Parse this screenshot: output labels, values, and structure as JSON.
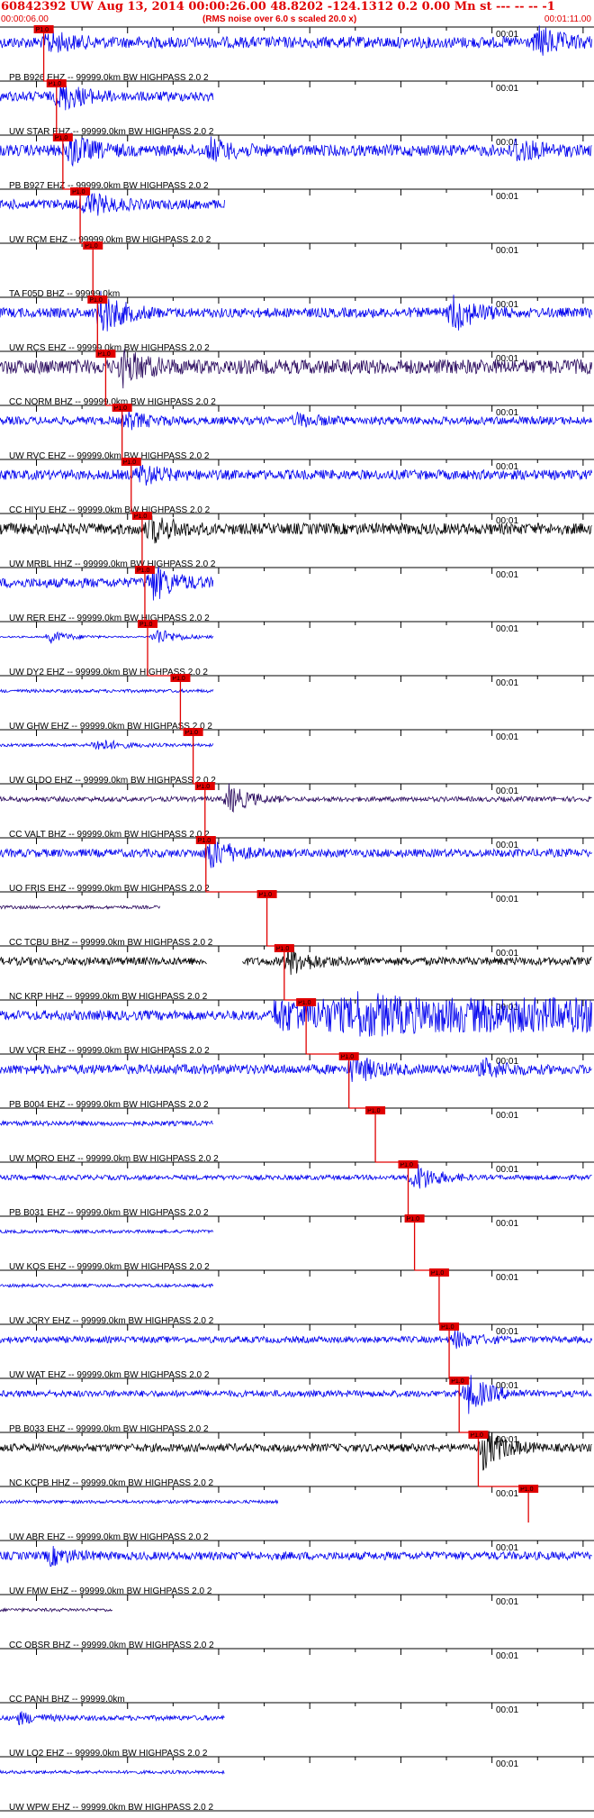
{
  "header": {
    "title_line": "60842392 UW Aug 13, 2014 00:00:26.00   48.8202 -124.1312  0.2 0.00 Mn st --- -- --  -1",
    "start_time": "00:00:06.00",
    "note": "(RMS noise over 6.0 s scaled 20.0 x)",
    "end_time": "00:01:11.00"
  },
  "colors": {
    "header": "#e00000",
    "pick": "#e00000",
    "blue": "#0000ee",
    "purple": "#2a0a5e",
    "black": "#000000",
    "axis": "#000000"
  },
  "chart_data": {
    "type": "seismogram-record-section",
    "time_window": {
      "start": "00:00:06.00",
      "end": "00:01:11.00"
    },
    "tick_label": "00:01",
    "pick_label": "P1.0",
    "traces": [
      {
        "label": "PB B926 EHZ -- 99999.0km BW  HIGHPASS  2.0  2",
        "color": "#0000ee",
        "pick": 10.8,
        "amp": 0.35,
        "rec_end": 1.0,
        "burst_at": 11.2,
        "burst": 0.6,
        "bursts": [
          [
            65.0,
            0.9
          ]
        ]
      },
      {
        "label": "UW STAR EHZ -- 99999.0km BW  HIGHPASS  2.0  2",
        "color": "#0000ee",
        "pick": 12.2,
        "amp": 0.3,
        "rec_end": 0.36,
        "burst_at": 12.5,
        "burst": 0.9
      },
      {
        "label": "PB B927 EHZ -- 99999.0km BW  HIGHPASS  2.0  2",
        "color": "#0000ee",
        "pick": 12.9,
        "amp": 0.35,
        "rec_end": 1.0,
        "burst_at": 13.4,
        "burst": 1.0,
        "bursts": [
          [
            29.0,
            0.6
          ],
          [
            62.5,
            0.7
          ]
        ]
      },
      {
        "label": "UW RCM EHZ -- 99999.0km BW  HIGHPASS  2.0  2",
        "color": "#0000ee",
        "pick": 14.8,
        "amp": 0.3,
        "rec_end": 0.38,
        "burst_at": 15.2,
        "burst": 0.8
      },
      {
        "label": "TA F05D BHZ -- 99999.0km",
        "color": "#0000ee",
        "pick": 16.2,
        "amp": 0.0,
        "rec_end": 0.0,
        "burst_at": 0,
        "burst": 0
      },
      {
        "label": "UW RCS EHZ -- 99999.0km BW  HIGHPASS  2.0  2",
        "color": "#0000ee",
        "pick": 16.7,
        "amp": 0.3,
        "rec_end": 1.0,
        "burst_at": 17.0,
        "burst": 1.3,
        "bursts": [
          [
            55.5,
            1.2
          ]
        ]
      },
      {
        "label": "CC NORM BHZ -- 99999.0km BW  HIGHPASS  2.0  2",
        "color": "#2a0a5e",
        "pick": 17.6,
        "amp": 0.45,
        "rec_end": 1.0,
        "burst_at": 19.5,
        "burst": 0.9
      },
      {
        "label": "UW RVC EHZ -- 99999.0km BW  HIGHPASS  2.0  2",
        "color": "#0000ee",
        "pick": 19.4,
        "amp": 0.25,
        "rec_end": 1.0,
        "burst_at": 19.8,
        "burst": 0.5,
        "bursts": [
          [
            38.5,
            0.35
          ]
        ]
      },
      {
        "label": "CC HIYU EHZ -- 99999.0km BW  HIGHPASS  2.0  2",
        "color": "#0000ee",
        "pick": 20.4,
        "amp": 0.3,
        "rec_end": 1.0,
        "burst_at": 21.3,
        "burst": 0.6
      },
      {
        "label": "UW MRBL HHZ -- 99999.0km BW  HIGHPASS  2.0  2",
        "color": "#000000",
        "pick": 21.6,
        "amp": 0.35,
        "rec_end": 1.0,
        "burst_at": 22.4,
        "burst": 0.8
      },
      {
        "label": "UW RER EHZ -- 99999.0km BW  HIGHPASS  2.0  2",
        "color": "#0000ee",
        "pick": 21.9,
        "amp": 0.3,
        "rec_end": 0.36,
        "burst_at": 22.6,
        "burst": 1.1
      },
      {
        "label": "UW DY2 EHZ -- 99999.0km BW  HIGHPASS  2.0  2",
        "color": "#0000ee",
        "pick": 22.2,
        "amp": 0.05,
        "rec_end": 0.36,
        "burst_at": 23.0,
        "burst": 0.6,
        "bursts": [
          [
            11.4,
            0.4
          ]
        ]
      },
      {
        "label": "UW GHW EHZ -- 99999.0km BW  HIGHPASS  2.0  2",
        "color": "#0000ee",
        "pick": 25.8,
        "amp": 0.1,
        "rec_end": 0.36,
        "burst_at": 0,
        "burst": 0
      },
      {
        "label": "UW GLDO EHZ -- 99999.0km BW  HIGHPASS  2.0  2",
        "color": "#0000ee",
        "pick": 27.2,
        "amp": 0.1,
        "rec_end": 0.36,
        "burst_at": 16.5,
        "burst": 0.4
      },
      {
        "label": "CC VALT BHZ -- 99999.0km BW  HIGHPASS  2.0  2",
        "color": "#2a0a5e",
        "pick": 28.5,
        "amp": 0.15,
        "rec_end": 1.0,
        "burst_at": 31.0,
        "burst": 0.9
      },
      {
        "label": "UO FRIS EHZ -- 99999.0km BW  HIGHPASS  2.0  2",
        "color": "#0000ee",
        "pick": 28.6,
        "amp": 0.25,
        "rec_end": 1.0,
        "burst_at": 28.8,
        "burst": 1.1
      },
      {
        "label": "CC TCBU BHZ -- 99999.0km BW  HIGHPASS  2.0  2",
        "color": "#2a0a5e",
        "pick": 35.3,
        "amp": 0.1,
        "rec_end": 0.27,
        "burst_at": 0,
        "burst": 0
      },
      {
        "label": "NC KRP HHZ -- 99999.0km BW  HIGHPASS  2.0  2",
        "color": "#000000",
        "pick": 37.2,
        "amp": 0.25,
        "rec_end": 1.0,
        "burst_at": 37.5,
        "burst": 0.9,
        "gap": [
          0.35,
          0.41
        ]
      },
      {
        "label": "UW VCR EHZ -- 99999.0km BW  HIGHPASS  2.0  2",
        "color": "#0000ee",
        "pick": 39.6,
        "amp": 0.3,
        "rec_end": 1.0,
        "burst_at": 45.0,
        "burst": 1.3,
        "wide_burst": true
      },
      {
        "label": "PB B004 EHZ -- 99999.0km BW  HIGHPASS  2.0  2",
        "color": "#0000ee",
        "pick": 44.3,
        "amp": 0.3,
        "rec_end": 1.0,
        "burst_at": 44.6,
        "burst": 0.9,
        "bursts": [
          [
            59.0,
            0.5
          ]
        ]
      },
      {
        "label": "UW MORO EHZ -- 99999.0km BW  HIGHPASS  2.0  2",
        "color": "#0000ee",
        "pick": 47.2,
        "amp": 0.15,
        "rec_end": 0.36,
        "burst_at": 0,
        "burst": 0
      },
      {
        "label": "PB B031 EHZ -- 99999.0km BW  HIGHPASS  2.0  2",
        "color": "#0000ee",
        "pick": 50.8,
        "amp": 0.15,
        "rec_end": 1.0,
        "burst_at": 51.3,
        "burst": 1.0
      },
      {
        "label": "UW KOS EHZ -- 99999.0km BW  HIGHPASS  2.0  2",
        "color": "#0000ee",
        "pick": 51.5,
        "amp": 0.1,
        "rec_end": 0.36,
        "burst_at": 0,
        "burst": 0
      },
      {
        "label": "UW JCRY EHZ -- 99999.0km BW  HIGHPASS  2.0  2",
        "color": "#0000ee",
        "pick": 54.2,
        "amp": 0.1,
        "rec_end": 0.36,
        "burst_at": 0,
        "burst": 0
      },
      {
        "label": "UW WAT EHZ -- 99999.0km BW  HIGHPASS  2.0  2",
        "color": "#0000ee",
        "pick": 55.3,
        "amp": 0.2,
        "rec_end": 1.0,
        "burst_at": 55.8,
        "burst": 0.5
      },
      {
        "label": "PB B033 EHZ -- 99999.0km BW  HIGHPASS  2.0  2",
        "color": "#0000ee",
        "pick": 56.4,
        "amp": 0.2,
        "rec_end": 1.0,
        "burst_at": 57.2,
        "burst": 1.2
      },
      {
        "label": "NC KCPB HHZ -- 99999.0km BW  HIGHPASS  2.0  2",
        "color": "#000000",
        "pick": 58.5,
        "amp": 0.25,
        "rec_end": 1.0,
        "burst_at": 59.0,
        "burst": 1.2
      },
      {
        "label": "UW ABR EHZ -- 99999.0km BW  HIGHPASS  2.0  2",
        "color": "#0000ee",
        "pick": 64.0,
        "amp": 0.1,
        "rec_end": 0.47,
        "burst_at": 0,
        "burst": 0
      },
      {
        "label": "UW FMW EHZ -- 99999.0km BW  HIGHPASS  2.0  2",
        "color": "#0000ee",
        "pick": 0,
        "amp": 0.25,
        "rec_end": 1.0,
        "burst_at": 11.4,
        "burst": 0.5
      },
      {
        "label": "CC OBSR BHZ -- 99999.0km BW  HIGHPASS  2.0  2",
        "color": "#2a0a5e",
        "pick": 0,
        "amp": 0.1,
        "rec_end": 0.19,
        "burst_at": 0,
        "burst": 0
      },
      {
        "label": "CC PANH BHZ -- 99999.0km",
        "color": "#0000ee",
        "pick": 0,
        "amp": 0.0,
        "rec_end": 0.0,
        "burst_at": 0,
        "burst": 0
      },
      {
        "label": "UW LO2 EHZ -- 99999.0km BW  HIGHPASS  2.0  2",
        "color": "#0000ee",
        "pick": 0,
        "amp": 0.15,
        "rec_end": 0.38,
        "burst_at": 8.0,
        "burst": 0.35
      },
      {
        "label": "UW WPW EHZ -- 99999.0km BW  HIGHPASS  2.0  2",
        "color": "#0000ee",
        "pick": 0,
        "amp": 0.1,
        "rec_end": 0.38,
        "burst_at": 0,
        "burst": 0
      }
    ]
  }
}
